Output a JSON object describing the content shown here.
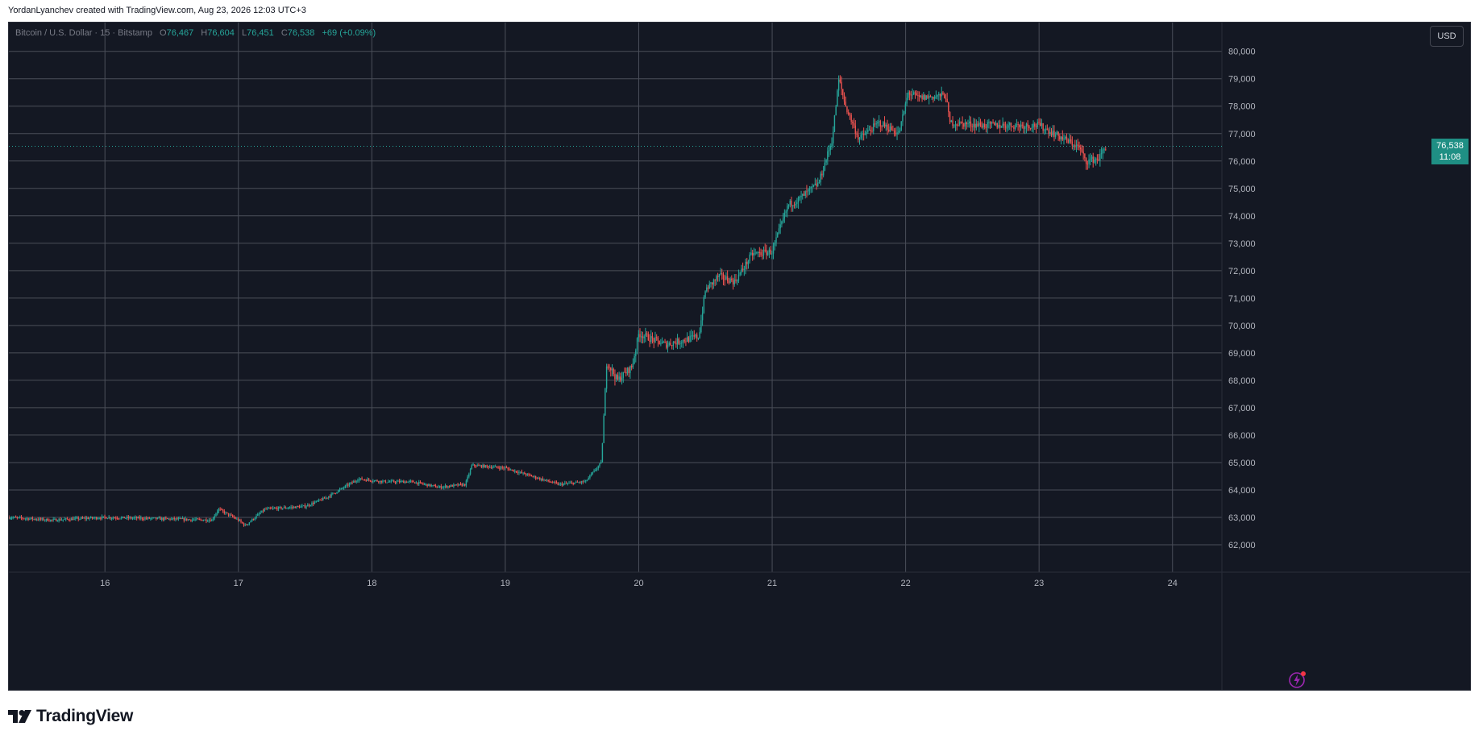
{
  "caption": "YordanLyanchev created with TradingView.com, Aug 23, 2026 12:03 UTC+3",
  "legend": {
    "symbol": "Bitcoin / U.S. Dollar · 15 · Bitstamp",
    "o_label": "O",
    "o": "76,467",
    "h_label": "H",
    "h": "76,604",
    "l_label": "L",
    "l": "76,451",
    "c_label": "C",
    "c": "76,538",
    "change": "+69 (+0.09%)"
  },
  "currency_button": "USD",
  "last_price": {
    "price": "76,538",
    "countdown": "11:08"
  },
  "brand": "TradingView",
  "colors": {
    "up": "#26a69a",
    "down": "#ef5350",
    "background": "#141823",
    "grid": "#4a4e59",
    "axis_text": "#b2b5be"
  },
  "chart_data": {
    "type": "candlestick",
    "title": "Bitcoin / U.S. Dollar · 15 · Bitstamp",
    "x_ticks": [
      "16",
      "17",
      "18",
      "19",
      "20",
      "21",
      "22",
      "23",
      "24"
    ],
    "y_ticks": [
      62000,
      63000,
      64000,
      65000,
      66000,
      67000,
      68000,
      69000,
      70000,
      71000,
      72000,
      73000,
      74000,
      75000,
      76000,
      77000,
      78000,
      79000,
      80000
    ],
    "y_tick_labels": [
      "62,000",
      "63,000",
      "64,000",
      "65,000",
      "66,000",
      "67,000",
      "68,000",
      "69,000",
      "70,000",
      "71,000",
      "72,000",
      "73,000",
      "74,000",
      "75,000",
      "76,000",
      "77,000",
      "78,000",
      "79,000",
      "80,000"
    ],
    "xlim": [
      15.28,
      24.37
    ],
    "ylim": [
      61000,
      81050
    ],
    "grid": true,
    "last_close": 76538,
    "path_day": [
      15.28,
      15.6,
      16.0,
      16.4,
      16.8,
      16.85,
      17.0,
      17.05,
      17.2,
      17.5,
      17.65,
      17.9,
      18.1,
      18.3,
      18.5,
      18.7,
      18.75,
      19.0,
      19.4,
      19.6,
      19.72,
      19.76,
      19.84,
      19.95,
      20.0,
      20.2,
      20.45,
      20.5,
      20.6,
      20.72,
      20.85,
      21.0,
      21.12,
      21.2,
      21.35,
      21.45,
      21.5,
      21.55,
      21.65,
      21.8,
      21.95,
      22.02,
      22.1,
      22.3,
      22.33,
      22.6,
      23.0,
      23.15,
      23.3,
      23.35,
      23.45,
      23.5
    ],
    "path_price": [
      63000,
      62900,
      63000,
      62950,
      62900,
      63300,
      62900,
      62700,
      63300,
      63400,
      63700,
      64400,
      64300,
      64300,
      64100,
      64200,
      64900,
      64800,
      64200,
      64300,
      65000,
      68700,
      68000,
      68500,
      69700,
      69300,
      69600,
      71300,
      71800,
      71600,
      72600,
      72700,
      74400,
      74600,
      75200,
      76800,
      79000,
      78000,
      76800,
      77400,
      77000,
      78500,
      78300,
      78400,
      77400,
      77300,
      77300,
      76900,
      76500,
      76000,
      76100,
      76538
    ]
  }
}
